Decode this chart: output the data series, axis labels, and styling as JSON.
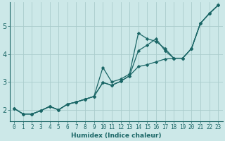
{
  "xlabel": "Humidex (Indice chaleur)",
  "background_color": "#cce8e8",
  "grid_color": "#aacccc",
  "line_color": "#1a6666",
  "xlim": [
    -0.5,
    23.5
  ],
  "ylim": [
    1.6,
    5.85
  ],
  "xticks": [
    0,
    1,
    2,
    3,
    4,
    5,
    6,
    7,
    8,
    9,
    10,
    11,
    12,
    13,
    14,
    15,
    16,
    17,
    18,
    19,
    20,
    21,
    22,
    23
  ],
  "yticks": [
    2,
    3,
    4,
    5
  ],
  "series": [
    [
      2.05,
      1.85,
      1.85,
      1.97,
      2.12,
      2.0,
      2.2,
      2.28,
      2.38,
      2.48,
      3.52,
      3.0,
      3.1,
      3.28,
      4.75,
      4.55,
      4.45,
      4.2,
      3.85,
      3.85,
      4.2,
      5.1,
      5.45,
      5.75
    ],
    [
      2.05,
      1.85,
      1.85,
      1.97,
      2.12,
      2.0,
      2.2,
      2.28,
      2.38,
      2.48,
      2.98,
      2.88,
      3.02,
      3.22,
      4.12,
      4.32,
      4.55,
      4.12,
      3.85,
      3.85,
      4.2,
      5.1,
      5.45,
      5.75
    ],
    [
      2.05,
      1.85,
      1.85,
      1.97,
      2.12,
      2.0,
      2.2,
      2.28,
      2.38,
      2.48,
      2.98,
      2.88,
      3.02,
      3.22,
      3.55,
      3.62,
      3.72,
      3.82,
      3.85,
      3.85,
      4.2,
      5.1,
      5.45,
      5.75
    ]
  ],
  "x": [
    0,
    1,
    2,
    3,
    4,
    5,
    6,
    7,
    8,
    9,
    10,
    11,
    12,
    13,
    14,
    15,
    16,
    17,
    18,
    19,
    20,
    21,
    22,
    23
  ],
  "xlabel_fontsize": 6.5,
  "tick_fontsize": 5.5,
  "ytick_fontsize": 7
}
